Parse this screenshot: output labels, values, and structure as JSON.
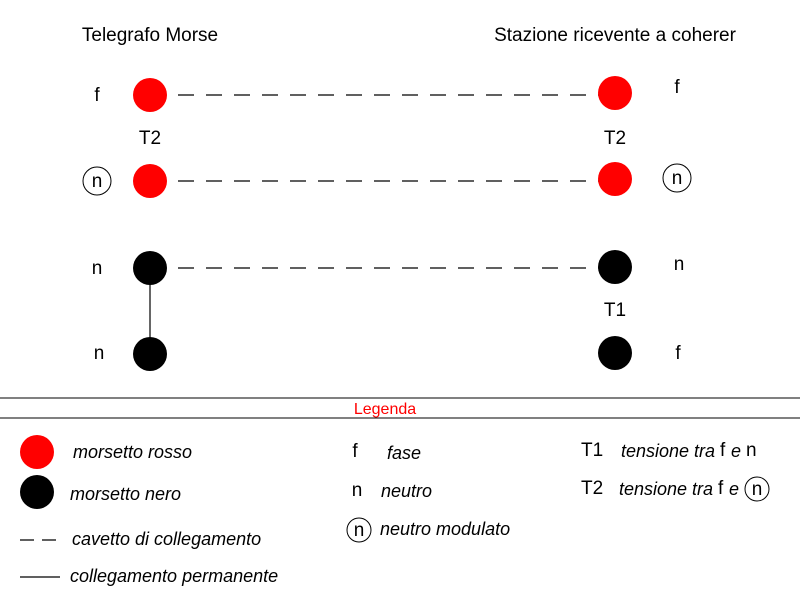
{
  "colors": {
    "red": "#ff0000",
    "black": "#000000"
  },
  "headers": {
    "left": "Telegrafo Morse",
    "right": "Stazione ricevente a coherer"
  },
  "labels": {
    "left_row1": "f",
    "left_row2": "n",
    "left_row3": "n",
    "left_row4": "n",
    "right_row1": "f",
    "right_row2": "n",
    "right_row3": "n",
    "right_row4": "f",
    "t2_left": "T2",
    "t2_right": "T2",
    "t1_right": "T1"
  },
  "legend": {
    "title": "Legenda",
    "red_terminal": "morsetto rosso",
    "black_terminal": "morsetto nero",
    "dashed_line": "cavetto di collegamento",
    "solid_line": "collegamento permanente",
    "f_symbol": "f",
    "f_desc": "fase",
    "n_symbol": "n",
    "n_desc": "neutro",
    "nm_symbol": "n",
    "nm_desc": "neutro modulato",
    "t1_symbol": "T1",
    "t1_desc": "tensione tra",
    "t1_f": "f",
    "t1_e": "e",
    "t1_n": "n",
    "t2_symbol": "T2",
    "t2_desc": "tensione tra",
    "t2_f": "f",
    "t2_e": "e",
    "t2_n": "n"
  }
}
